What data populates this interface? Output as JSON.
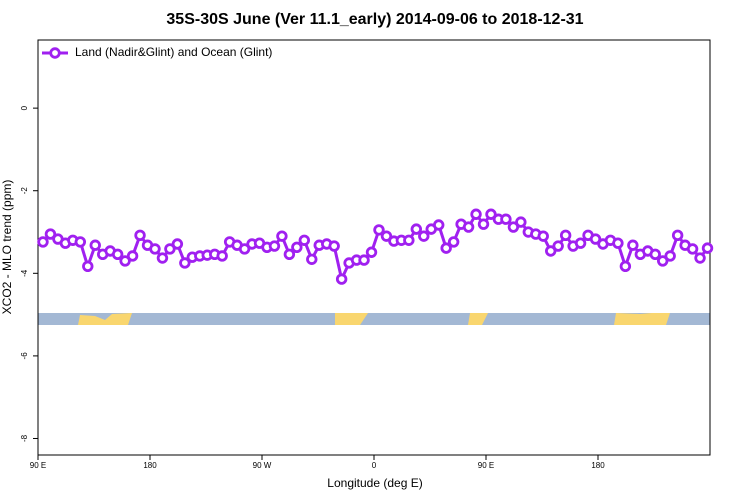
{
  "chart_data": {
    "type": "line",
    "title": "35S-30S June (Ver 11.1_early)   2014-09-06 to 2018-12-31",
    "xlabel": "Longitude (deg E)",
    "ylabel": "XCO2 - MLO trend (ppm)",
    "xlim": [
      90,
      630
    ],
    "ylim": [
      -8.4,
      1.65
    ],
    "xticks": [
      {
        "value": 90,
        "label": "90 E"
      },
      {
        "value": 180,
        "label": "180"
      },
      {
        "value": 270,
        "label": "90 W"
      },
      {
        "value": 360,
        "label": "0"
      },
      {
        "value": 450,
        "label": "90 E"
      },
      {
        "value": 540,
        "label": "180"
      }
    ],
    "yticks": [
      0,
      -2,
      -4,
      -6,
      -8
    ],
    "legend": "upper left",
    "x": [
      94,
      100,
      106,
      112,
      118,
      124,
      130,
      136,
      142,
      148,
      154,
      160,
      166,
      172,
      178,
      184,
      190,
      196,
      202,
      208,
      214,
      220,
      226,
      232,
      238,
      244,
      250,
      256,
      262,
      268,
      274,
      280,
      286,
      292,
      298,
      304,
      310,
      316,
      322,
      328,
      334,
      340,
      346,
      352,
      358,
      364,
      370,
      376,
      382,
      388,
      394,
      400,
      406,
      412,
      418,
      424,
      430,
      436,
      442,
      448,
      454,
      460,
      466,
      472,
      478,
      484,
      490,
      496,
      502,
      508,
      514,
      520,
      526,
      532,
      538,
      544,
      550,
      556,
      562,
      568,
      574,
      580,
      586,
      592,
      598,
      604,
      610,
      616,
      622,
      628
    ],
    "series": [
      {
        "name": "Land (Nadir&Glint) and Ocean (Glint)",
        "color": "#a020f0",
        "values": [
          -3.24,
          -3.05,
          -3.17,
          -3.27,
          -3.2,
          -3.24,
          -3.83,
          -3.32,
          -3.54,
          -3.46,
          -3.54,
          -3.7,
          -3.58,
          -3.08,
          -3.32,
          -3.41,
          -3.63,
          -3.41,
          -3.29,
          -3.75,
          -3.61,
          -3.58,
          -3.56,
          -3.54,
          -3.58,
          -3.24,
          -3.32,
          -3.41,
          -3.29,
          -3.27,
          -3.37,
          -3.34,
          -3.1,
          -3.54,
          -3.37,
          -3.2,
          -3.66,
          -3.32,
          -3.29,
          -3.34,
          -4.14,
          -3.75,
          -3.68,
          -3.68,
          -3.49,
          -2.95,
          -3.1,
          -3.22,
          -3.2,
          -3.2,
          -2.93,
          -3.1,
          -2.93,
          -2.83,
          -3.39,
          -3.24,
          -2.81,
          -2.88,
          -2.57,
          -2.81,
          -2.57,
          -2.69,
          -2.69,
          -2.88,
          -2.76,
          -3.0,
          -3.05,
          -3.1,
          -3.46,
          -3.34,
          -3.08,
          -3.34,
          -3.27,
          -3.08,
          -3.17,
          -3.29,
          -3.2,
          -3.27,
          -3.83,
          -3.32,
          -3.54,
          -3.46,
          -3.54,
          -3.7,
          -3.58,
          -3.08,
          -3.32,
          -3.41,
          -3.63,
          -3.39
        ]
      }
    ]
  }
}
